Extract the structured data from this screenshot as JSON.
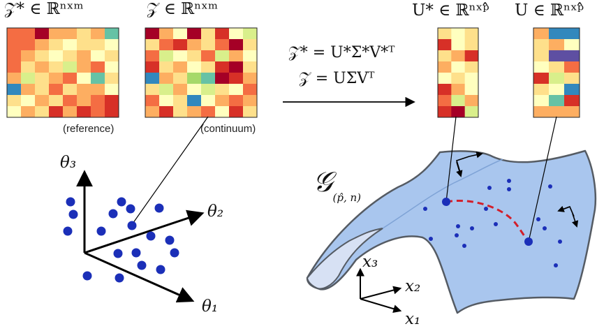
{
  "labels": {
    "zstar_set": "𝒵* ∈ ℝⁿˣᵐ",
    "z_set": "𝒵 ∈ ℝⁿˣᵐ",
    "ustar_set": "U* ∈ ℝⁿˣᵖ̂",
    "u_set": "U ∈ ℝⁿˣᵖ̂",
    "reference": "(reference)",
    "continuum": "(continuum)",
    "eq1": "𝒵* = U*Σ*V*ᵀ",
    "eq2": "𝒵 = UΣVᵀ",
    "manifold": "𝒢",
    "manifold_sub": "(p̂, n)",
    "theta1": "θ₁",
    "theta2": "θ₂",
    "theta3": "θ₃",
    "x1": "x₁",
    "x2": "x₂",
    "x3": "x₃"
  },
  "colors": {
    "dot": "#1b2fb8",
    "manifold_fill": "#a9c6ee",
    "manifold_stroke": "#555b63",
    "geodesic": "#d21f2b",
    "palette": [
      "#a50026",
      "#d73027",
      "#f46d43",
      "#fdae61",
      "#fee08b",
      "#ffffbf",
      "#d9ef8b",
      "#a6d96a",
      "#66c2a5",
      "#3288bd",
      "#5e4fa2"
    ]
  },
  "matrices": {
    "zstar": [
      [
        2,
        2,
        0,
        3,
        3,
        4,
        3,
        8
      ],
      [
        2,
        2,
        3,
        4,
        5,
        4,
        4,
        5
      ],
      [
        2,
        3,
        4,
        5,
        4,
        3,
        5,
        4
      ],
      [
        2,
        4,
        3,
        4,
        6,
        3,
        2,
        5
      ],
      [
        3,
        6,
        4,
        3,
        2,
        5,
        8,
        4
      ],
      [
        9,
        3,
        4,
        2,
        4,
        3,
        3,
        5
      ],
      [
        4,
        5,
        3,
        4,
        2,
        3,
        2,
        1
      ],
      [
        5,
        3,
        4,
        1,
        3,
        1,
        2,
        1
      ]
    ],
    "z": [
      [
        0,
        3,
        5,
        0,
        4,
        1,
        5,
        6
      ],
      [
        4,
        2,
        1,
        3,
        4,
        2,
        0,
        4
      ],
      [
        2,
        6,
        5,
        4,
        2,
        6,
        3,
        5
      ],
      [
        1,
        4,
        3,
        5,
        4,
        1,
        0,
        4
      ],
      [
        9,
        3,
        4,
        7,
        8,
        0,
        1,
        3
      ],
      [
        4,
        6,
        3,
        5,
        6,
        4,
        5,
        2
      ],
      [
        2,
        5,
        4,
        9,
        5,
        3,
        2,
        3
      ],
      [
        3,
        1,
        4,
        3,
        2,
        5,
        1,
        4
      ]
    ],
    "ustar": [
      [
        4,
        5,
        4
      ],
      [
        1,
        5,
        4
      ],
      [
        4,
        3,
        1
      ],
      [
        3,
        5,
        4
      ],
      [
        5,
        4,
        5
      ],
      [
        1,
        3,
        5
      ],
      [
        2,
        6,
        3
      ],
      [
        1,
        0,
        6
      ]
    ],
    "u": [
      [
        3,
        9,
        9
      ],
      [
        4,
        3,
        5
      ],
      [
        4,
        10,
        10
      ],
      [
        5,
        4,
        2
      ],
      [
        1,
        6,
        4
      ],
      [
        4,
        5,
        9
      ],
      [
        5,
        8,
        1
      ],
      [
        3,
        3,
        3
      ]
    ]
  }
}
